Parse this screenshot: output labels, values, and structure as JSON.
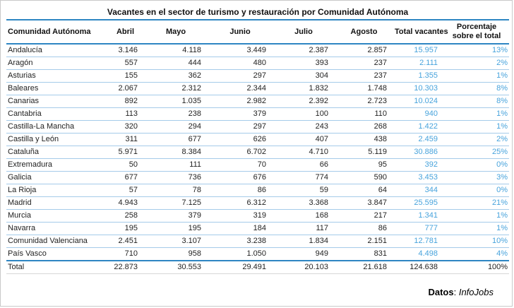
{
  "table": {
    "title": "Vacantes en el sector de turismo y restauración por Comunidad Autónoma",
    "columns": [
      "Comunidad Autónoma",
      "Abril",
      "Mayo",
      "Junio",
      "Julio",
      "Agosto",
      "Total vacantes",
      "Porcentaje sobre el total"
    ],
    "rows": [
      {
        "name": "Andalucía",
        "values": [
          "3.146",
          "4.118",
          "3.449",
          "2.387",
          "2.857"
        ],
        "total": "15.957",
        "pct": "13%"
      },
      {
        "name": "Aragón",
        "values": [
          "557",
          "444",
          "480",
          "393",
          "237"
        ],
        "total": "2.111",
        "pct": "2%"
      },
      {
        "name": "Asturias",
        "values": [
          "155",
          "362",
          "297",
          "304",
          "237"
        ],
        "total": "1.355",
        "pct": "1%"
      },
      {
        "name": "Baleares",
        "values": [
          "2.067",
          "2.312",
          "2.344",
          "1.832",
          "1.748"
        ],
        "total": "10.303",
        "pct": "8%"
      },
      {
        "name": "Canarias",
        "values": [
          "892",
          "1.035",
          "2.982",
          "2.392",
          "2.723"
        ],
        "total": "10.024",
        "pct": "8%"
      },
      {
        "name": "Cantabria",
        "values": [
          "113",
          "238",
          "379",
          "100",
          "110"
        ],
        "total": "940",
        "pct": "1%"
      },
      {
        "name": "Castilla-La Mancha",
        "values": [
          "320",
          "294",
          "297",
          "243",
          "268"
        ],
        "total": "1.422",
        "pct": "1%"
      },
      {
        "name": "Castilla y León",
        "values": [
          "311",
          "677",
          "626",
          "407",
          "438"
        ],
        "total": "2.459",
        "pct": "2%"
      },
      {
        "name": "Cataluña",
        "values": [
          "5.971",
          "8.384",
          "6.702",
          "4.710",
          "5.119"
        ],
        "total": "30.886",
        "pct": "25%"
      },
      {
        "name": "Extremadura",
        "values": [
          "50",
          "111",
          "70",
          "66",
          "95"
        ],
        "total": "392",
        "pct": "0%"
      },
      {
        "name": "Galicia",
        "values": [
          "677",
          "736",
          "676",
          "774",
          "590"
        ],
        "total": "3.453",
        "pct": "3%"
      },
      {
        "name": "La Rioja",
        "values": [
          "57",
          "78",
          "86",
          "59",
          "64"
        ],
        "total": "344",
        "pct": "0%"
      },
      {
        "name": "Madrid",
        "values": [
          "4.943",
          "7.125",
          "6.312",
          "3.368",
          "3.847"
        ],
        "total": "25.595",
        "pct": "21%"
      },
      {
        "name": "Murcia",
        "values": [
          "258",
          "379",
          "319",
          "168",
          "217"
        ],
        "total": "1.341",
        "pct": "1%"
      },
      {
        "name": "Navarra",
        "values": [
          "195",
          "195",
          "184",
          "117",
          "86"
        ],
        "total": "777",
        "pct": "1%"
      },
      {
        "name": "Comunidad Valenciana",
        "values": [
          "2.451",
          "3.107",
          "3.238",
          "1.834",
          "2.151"
        ],
        "total": "12.781",
        "pct": "10%"
      },
      {
        "name": "País Vasco",
        "values": [
          "710",
          "958",
          "1.050",
          "949",
          "831"
        ],
        "total": "4.498",
        "pct": "4%"
      }
    ],
    "total_row": {
      "name": "Total",
      "values": [
        "22.873",
        "30.553",
        "29.491",
        "20.103",
        "21.618"
      ],
      "total": "124.638",
      "pct": "100%"
    }
  },
  "footer": {
    "label": "Datos",
    "separator": ": ",
    "source": "InfoJobs"
  },
  "colors": {
    "accent_line_blue": "#2e86c3",
    "row_separator_blue": "#a5cbe9",
    "value_text_blue": "#47a3dc",
    "text_black": "#1f1f1f"
  },
  "chart_data": {
    "type": "table",
    "title": "Vacantes en el sector de turismo y restauración por Comunidad Autónoma",
    "columns": [
      "Comunidad Autónoma",
      "Abril",
      "Mayo",
      "Junio",
      "Julio",
      "Agosto",
      "Total vacantes",
      "Porcentaje sobre el total"
    ],
    "rows": [
      [
        "Andalucía",
        3146,
        4118,
        3449,
        2387,
        2857,
        15957,
        "13%"
      ],
      [
        "Aragón",
        557,
        444,
        480,
        393,
        237,
        2111,
        "2%"
      ],
      [
        "Asturias",
        155,
        362,
        297,
        304,
        237,
        1355,
        "1%"
      ],
      [
        "Baleares",
        2067,
        2312,
        2344,
        1832,
        1748,
        10303,
        "8%"
      ],
      [
        "Canarias",
        892,
        1035,
        2982,
        2392,
        2723,
        10024,
        "8%"
      ],
      [
        "Cantabria",
        113,
        238,
        379,
        100,
        110,
        940,
        "1%"
      ],
      [
        "Castilla-La Mancha",
        320,
        294,
        297,
        243,
        268,
        1422,
        "1%"
      ],
      [
        "Castilla y León",
        311,
        677,
        626,
        407,
        438,
        2459,
        "2%"
      ],
      [
        "Cataluña",
        5971,
        8384,
        6702,
        4710,
        5119,
        30886,
        "25%"
      ],
      [
        "Extremadura",
        50,
        111,
        70,
        66,
        95,
        392,
        "0%"
      ],
      [
        "Galicia",
        677,
        736,
        676,
        774,
        590,
        3453,
        "3%"
      ],
      [
        "La Rioja",
        57,
        78,
        86,
        59,
        64,
        344,
        "0%"
      ],
      [
        "Madrid",
        4943,
        7125,
        6312,
        3368,
        3847,
        25595,
        "21%"
      ],
      [
        "Murcia",
        258,
        379,
        319,
        168,
        217,
        1341,
        "1%"
      ],
      [
        "Navarra",
        195,
        195,
        184,
        117,
        86,
        777,
        "1%"
      ],
      [
        "Comunidad Valenciana",
        2451,
        3107,
        3238,
        1834,
        2151,
        12781,
        "10%"
      ],
      [
        "País Vasco",
        710,
        958,
        1050,
        949,
        831,
        4498,
        "4%"
      ],
      [
        "Total",
        22873,
        30553,
        29491,
        20103,
        21618,
        124638,
        "100%"
      ]
    ],
    "source": "InfoJobs"
  }
}
